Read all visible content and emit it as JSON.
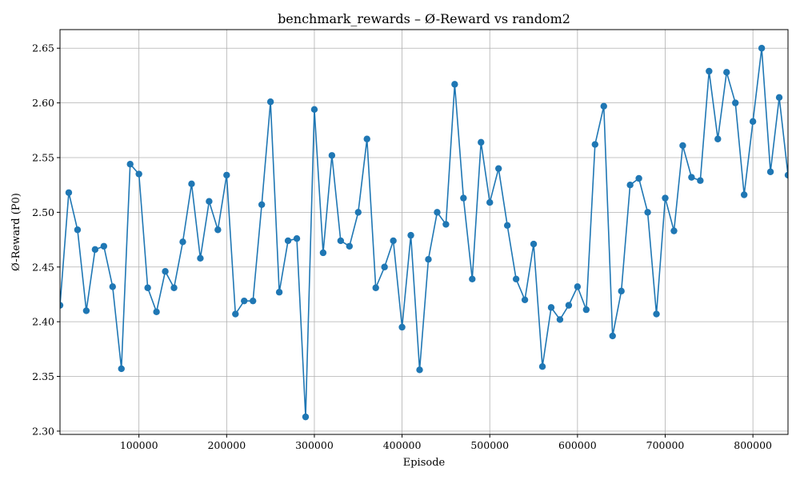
{
  "chart_data": {
    "type": "line",
    "title": "benchmark_rewards – Ø-Reward vs random2",
    "xlabel": "Episode",
    "ylabel": "Ø-Reward (P0)",
    "xlim": [
      10000,
      840000
    ],
    "ylim": [
      2.297,
      2.667
    ],
    "xticks": [
      100000,
      200000,
      300000,
      400000,
      500000,
      600000,
      700000,
      800000
    ],
    "xtick_labels": [
      "100000",
      "200000",
      "300000",
      "400000",
      "500000",
      "600000",
      "700000",
      "800000"
    ],
    "yticks": [
      2.3,
      2.35,
      2.4,
      2.45,
      2.5,
      2.55,
      2.6,
      2.65
    ],
    "ytick_labels": [
      "2.30",
      "2.35",
      "2.40",
      "2.45",
      "2.50",
      "2.55",
      "2.60",
      "2.65"
    ],
    "grid": true,
    "color": "#1f77b4",
    "series": [
      {
        "x": [
          10000,
          20000,
          30000,
          40000,
          50000,
          60000,
          70000,
          80000,
          90000,
          100000,
          110000,
          120000,
          130000,
          140000,
          150000,
          160000,
          170000,
          180000,
          190000,
          200000,
          210000,
          220000,
          230000,
          240000,
          250000,
          260000,
          270000,
          280000,
          290000,
          300000,
          310000,
          320000,
          330000,
          340000,
          350000,
          360000,
          370000,
          380000,
          390000,
          400000,
          410000,
          420000,
          430000,
          440000,
          450000,
          460000,
          470000,
          480000,
          490000,
          500000,
          510000,
          520000,
          530000,
          540000,
          550000,
          560000,
          570000,
          580000,
          590000,
          600000,
          610000,
          620000,
          630000,
          640000,
          650000,
          660000,
          670000,
          680000,
          690000,
          700000,
          710000,
          720000,
          730000,
          740000,
          750000,
          760000,
          770000,
          780000,
          790000,
          800000,
          810000,
          820000,
          830000,
          840000
        ],
        "values": [
          2.415,
          2.518,
          2.484,
          2.41,
          2.466,
          2.469,
          2.432,
          2.357,
          2.544,
          2.535,
          2.431,
          2.409,
          2.446,
          2.431,
          2.473,
          2.526,
          2.458,
          2.51,
          2.484,
          2.534,
          2.407,
          2.419,
          2.419,
          2.507,
          2.601,
          2.427,
          2.474,
          2.476,
          2.313,
          2.594,
          2.463,
          2.552,
          2.474,
          2.469,
          2.5,
          2.567,
          2.431,
          2.45,
          2.474,
          2.395,
          2.479,
          2.356,
          2.457,
          2.5,
          2.489,
          2.617,
          2.513,
          2.439,
          2.564,
          2.509,
          2.54,
          2.488,
          2.439,
          2.42,
          2.471,
          2.359,
          2.413,
          2.402,
          2.415,
          2.432,
          2.411,
          2.562,
          2.597,
          2.387,
          2.428,
          2.525,
          2.531,
          2.5,
          2.407,
          2.513,
          2.483,
          2.561,
          2.532,
          2.529,
          2.629,
          2.567,
          2.628,
          2.6,
          2.516,
          2.583,
          2.65,
          2.537,
          2.605,
          2.534
        ]
      }
    ]
  }
}
